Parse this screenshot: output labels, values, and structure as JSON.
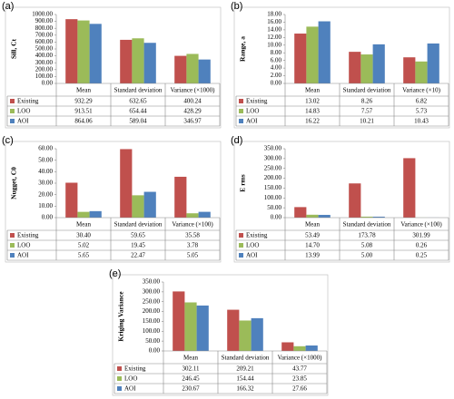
{
  "chart_data": [
    {
      "type": "bar",
      "panel_label": "(a)",
      "y_label": "Sill, Ct",
      "categories": [
        "Mean",
        "Standard deviation",
        "Variance (×1000)"
      ],
      "series": [
        {
          "name": "Existing",
          "color": "#c0504d",
          "values": [
            932.29,
            632.65,
            400.24
          ],
          "value_labels": [
            "932.29",
            "632.65",
            "400.24"
          ]
        },
        {
          "name": "LOO",
          "color": "#9bbb59",
          "values": [
            913.51,
            654.44,
            428.29
          ],
          "value_labels": [
            "913.51",
            "654.44",
            "428.29"
          ]
        },
        {
          "name": "AOI",
          "color": "#4f81bd",
          "values": [
            864.06,
            589.04,
            346.97
          ],
          "value_labels": [
            "864.06",
            "589.04",
            "346.97"
          ]
        }
      ],
      "ylim": [
        0,
        1000
      ],
      "grid": false,
      "yticks": [
        {
          "value": 0,
          "label": "0.00"
        },
        {
          "value": 100,
          "label": "100.00"
        },
        {
          "value": 200,
          "label": "200.00"
        },
        {
          "value": 300,
          "label": "300.00"
        },
        {
          "value": 400,
          "label": "400.00"
        },
        {
          "value": 500,
          "label": "500.00"
        },
        {
          "value": 600,
          "label": "600.00"
        },
        {
          "value": 700,
          "label": "700.00"
        },
        {
          "value": 800,
          "label": "800.00"
        },
        {
          "value": 900,
          "label": "900.00"
        },
        {
          "value": 1000,
          "label": "1000.00"
        }
      ]
    },
    {
      "type": "bar",
      "panel_label": "(b)",
      "y_label": "Range, a",
      "categories": [
        "Mean",
        "Standard deviation",
        "Variance (×10)"
      ],
      "series": [
        {
          "name": "Existing",
          "color": "#c0504d",
          "values": [
            13.02,
            8.26,
            6.82
          ],
          "value_labels": [
            "13.02",
            "8.26",
            "6.82"
          ]
        },
        {
          "name": "LOO",
          "color": "#9bbb59",
          "values": [
            14.83,
            7.57,
            5.73
          ],
          "value_labels": [
            "14.83",
            "7.57",
            "5.73"
          ]
        },
        {
          "name": "AOI",
          "color": "#4f81bd",
          "values": [
            16.22,
            10.21,
            10.43
          ],
          "value_labels": [
            "16.22",
            "10.21",
            "10.43"
          ]
        }
      ],
      "ylim": [
        0,
        18
      ],
      "grid": false,
      "yticks": [
        {
          "value": 0,
          "label": "0.00"
        },
        {
          "value": 2,
          "label": "2.00"
        },
        {
          "value": 4,
          "label": "4.00"
        },
        {
          "value": 6,
          "label": "6.00"
        },
        {
          "value": 8,
          "label": "8.00"
        },
        {
          "value": 10,
          "label": "10.00"
        },
        {
          "value": 12,
          "label": "12.00"
        },
        {
          "value": 14,
          "label": "14.00"
        },
        {
          "value": 16,
          "label": "16.00"
        },
        {
          "value": 18,
          "label": "18.00"
        }
      ]
    },
    {
      "type": "bar",
      "panel_label": "(c)",
      "y_label": "Nugget, C0",
      "categories": [
        "Mean",
        "Standard deviation",
        "Variance (×100)"
      ],
      "series": [
        {
          "name": "Existing",
          "color": "#c0504d",
          "values": [
            30.4,
            59.65,
            35.58
          ],
          "value_labels": [
            "30.40",
            "59.65",
            "35.58"
          ]
        },
        {
          "name": "LOO",
          "color": "#9bbb59",
          "values": [
            5.02,
            19.45,
            3.78
          ],
          "value_labels": [
            "5.02",
            "19.45",
            "3.78"
          ]
        },
        {
          "name": "AOI",
          "color": "#4f81bd",
          "values": [
            5.65,
            22.47,
            5.05
          ],
          "value_labels": [
            "5.65",
            "22.47",
            "5.05"
          ]
        }
      ],
      "ylim": [
        0,
        60
      ],
      "grid": false,
      "yticks": [
        {
          "value": 0,
          "label": "0.00"
        },
        {
          "value": 10,
          "label": "10.00"
        },
        {
          "value": 20,
          "label": "20.00"
        },
        {
          "value": 30,
          "label": "30.00"
        },
        {
          "value": 40,
          "label": "40.00"
        },
        {
          "value": 50,
          "label": "50.00"
        },
        {
          "value": 60,
          "label": "60.00"
        }
      ]
    },
    {
      "type": "bar",
      "panel_label": "(d)",
      "y_label": "E rms",
      "categories": [
        "Mean",
        "Standard deviation",
        "Variance (×100)"
      ],
      "series": [
        {
          "name": "Existing",
          "color": "#c0504d",
          "values": [
            53.49,
            173.78,
            301.99
          ],
          "value_labels": [
            "53.49",
            "173.78",
            "301.99"
          ]
        },
        {
          "name": "LOO",
          "color": "#9bbb59",
          "values": [
            14.7,
            5.08,
            0.26
          ],
          "value_labels": [
            "14.70",
            "5.08",
            "0.26"
          ]
        },
        {
          "name": "AOI",
          "color": "#4f81bd",
          "values": [
            13.99,
            5.0,
            0.25
          ],
          "value_labels": [
            "13.99",
            "5.00",
            "0.25"
          ]
        }
      ],
      "ylim": [
        0,
        350
      ],
      "grid": false,
      "yticks": [
        {
          "value": 0,
          "label": "0.00"
        },
        {
          "value": 50,
          "label": "50.00"
        },
        {
          "value": 100,
          "label": "100.00"
        },
        {
          "value": 150,
          "label": "150.00"
        },
        {
          "value": 200,
          "label": "200.00"
        },
        {
          "value": 250,
          "label": "250.00"
        },
        {
          "value": 300,
          "label": "300.00"
        },
        {
          "value": 350,
          "label": "350.00"
        }
      ]
    },
    {
      "type": "bar",
      "panel_label": "(e)",
      "y_label": "Kriging Variance",
      "categories": [
        "Mean",
        "Standard deviation",
        "Variance (×1000)"
      ],
      "series": [
        {
          "name": "Existing",
          "color": "#c0504d",
          "values": [
            302.11,
            209.21,
            43.77
          ],
          "value_labels": [
            "302.11",
            "209.21",
            "43.77"
          ]
        },
        {
          "name": "LOO",
          "color": "#9bbb59",
          "values": [
            246.45,
            154.44,
            23.85
          ],
          "value_labels": [
            "246.45",
            "154.44",
            "23.85"
          ]
        },
        {
          "name": "AOI",
          "color": "#4f81bd",
          "values": [
            230.67,
            166.32,
            27.66
          ],
          "value_labels": [
            "230.67",
            "166.32",
            "27.66"
          ]
        }
      ],
      "ylim": [
        0,
        350
      ],
      "grid": false,
      "yticks": [
        {
          "value": 0,
          "label": "0.00"
        },
        {
          "value": 50,
          "label": "50.00"
        },
        {
          "value": 100,
          "label": "100.00"
        },
        {
          "value": 150,
          "label": "150.00"
        },
        {
          "value": 200,
          "label": "200.00"
        },
        {
          "value": 250,
          "label": "250.00"
        },
        {
          "value": 300,
          "label": "300.00"
        },
        {
          "value": 350,
          "label": "350.00"
        }
      ]
    }
  ]
}
